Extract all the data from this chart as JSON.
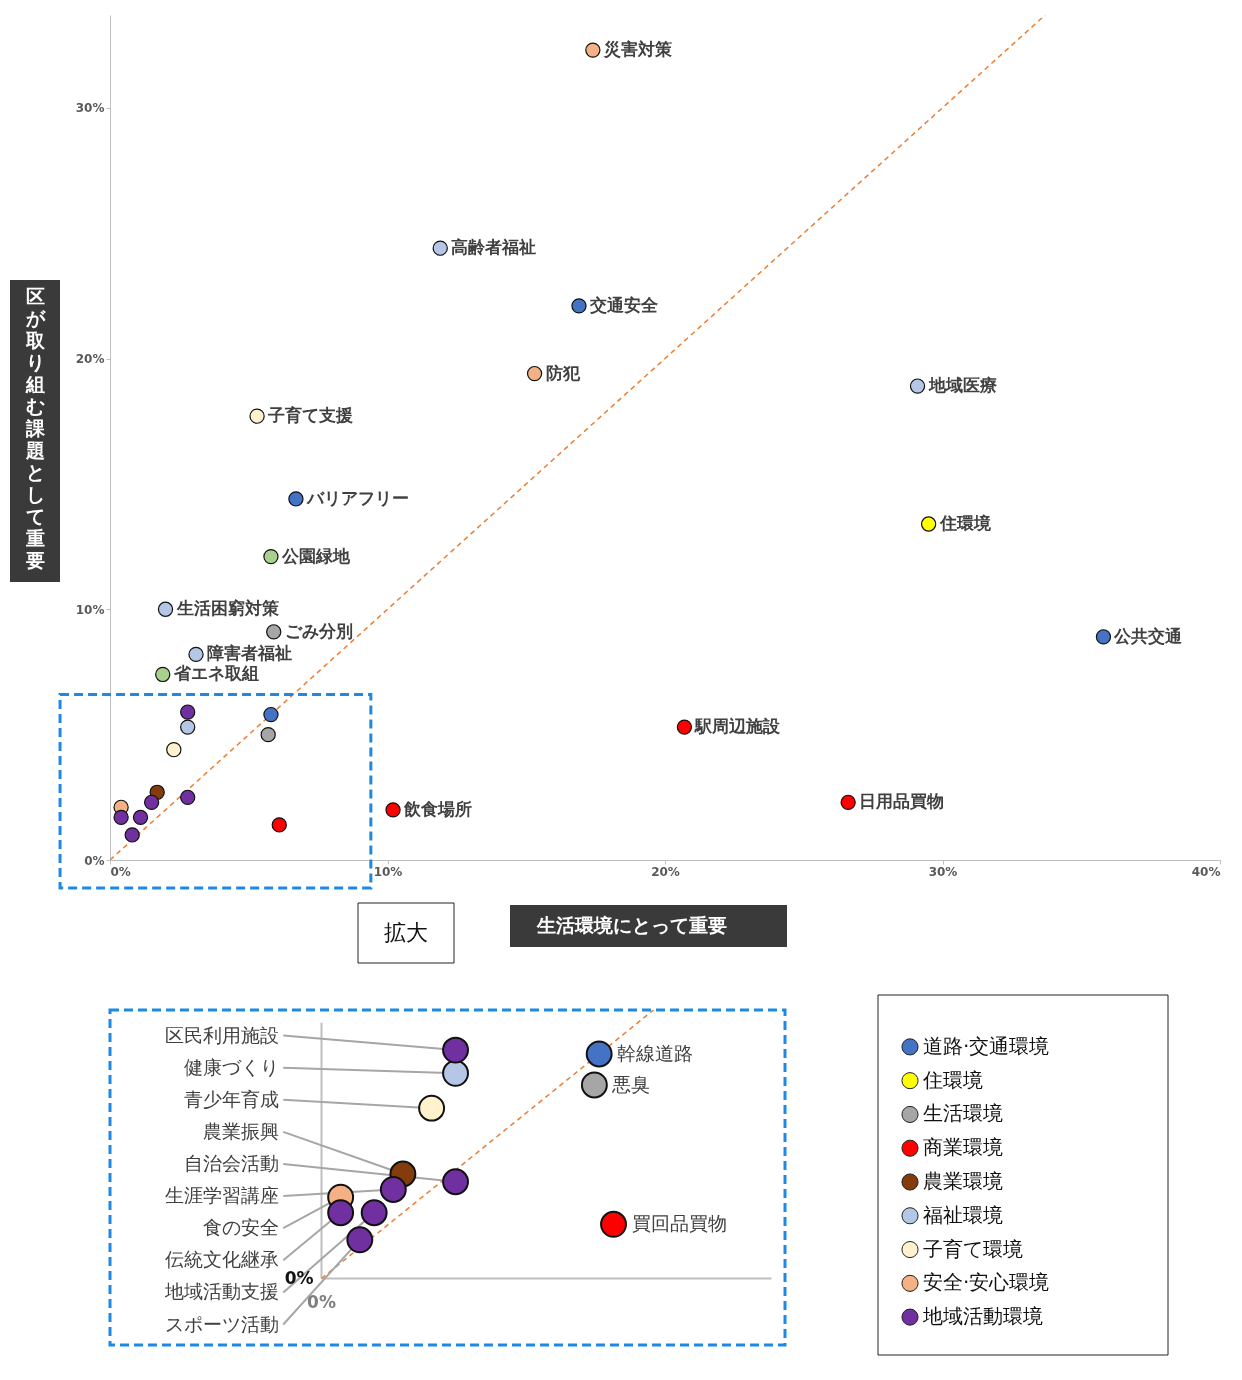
{
  "chart_data": {
    "type": "scatter",
    "xlabel": "生活環境にとって重要",
    "ylabel": "区が取り組む課題として重要",
    "annotations": [
      "拡大",
      "幹線道路",
      "悪臭",
      "買回品買物",
      "農業振興",
      "健康づくり",
      "青少年育成",
      "食の安全",
      "区民利用施設",
      "自治会活動",
      "生涯学習講座",
      "伝統文化継承",
      "地域活動支援",
      "スポーツ活動"
    ],
    "xlim": [
      0,
      40
    ],
    "ylim": [
      0,
      33.7
    ],
    "xticks": [
      {
        "value": 0,
        "label": "0%"
      },
      {
        "value": 10,
        "label": "10%"
      },
      {
        "value": 20,
        "label": "20%"
      },
      {
        "value": 30,
        "label": "30%"
      },
      {
        "value": 40,
        "label": "40%"
      }
    ],
    "yticks": [
      {
        "value": 0,
        "label": "0%"
      },
      {
        "value": 10,
        "label": "10%"
      },
      {
        "value": 20,
        "label": "20%"
      },
      {
        "value": 30,
        "label": "30%"
      }
    ],
    "grid": false,
    "legend": "bottom right",
    "marker": "circle",
    "series": [
      {
        "name": "道路·交通環境",
        "color": "#4472c4",
        "x": [
          16.9,
          6.7,
          35.8,
          5.8
        ],
        "values": [
          22.1,
          14.4,
          8.9,
          5.8
        ],
        "value_labels": [
          "交通安全",
          "バリアフリー",
          "公共交通",
          null
        ]
      },
      {
        "name": "住環境",
        "color": "#ffff00",
        "x": [
          29.5
        ],
        "values": [
          13.4
        ],
        "value_labels": [
          "住環境"
        ]
      },
      {
        "name": "生活環境",
        "color": "#a6a6a6",
        "x": [
          5.9,
          5.7
        ],
        "values": [
          9.1,
          5.0
        ],
        "value_labels": [
          "ごみ分別",
          null
        ]
      },
      {
        "name": "商業環境",
        "color": "#ff0000",
        "x": [
          20.7,
          26.6,
          10.2,
          6.1
        ],
        "values": [
          5.3,
          2.3,
          2.0,
          1.4
        ],
        "value_labels": [
          "駅周辺施設",
          "日用品買物",
          "飲食場所",
          null
        ]
      },
      {
        "name": "農業環境",
        "color": "#843c0c",
        "x": [
          1.7
        ],
        "values": [
          2.7
        ]
      },
      {
        "name": "福祉環境",
        "color": "#b4c7e7",
        "x": [
          11.9,
          29.1,
          2.0,
          3.1,
          2.8
        ],
        "values": [
          24.4,
          18.9,
          10.0,
          8.2,
          5.3
        ],
        "value_labels": [
          "高齢者福祉",
          "地域医療",
          "生活困窮対策",
          "障害者福祉",
          null
        ]
      },
      {
        "name": "子育て環境",
        "color": "#fff2cc",
        "x": [
          5.3,
          2.3
        ],
        "values": [
          17.7,
          4.4
        ],
        "value_labels": [
          "子育て支援",
          null
        ]
      },
      {
        "name": "安全·安心環境",
        "color": "#f4b183",
        "x": [
          17.4,
          15.3,
          0.4
        ],
        "values": [
          32.3,
          19.4,
          2.1
        ],
        "value_labels": [
          "災害対策",
          "防犯",
          null
        ]
      },
      {
        "name": "地域活動環境",
        "color": "#7030a0",
        "x": [
          2.8,
          2.8,
          1.5,
          0.4,
          1.1,
          0.8
        ],
        "values": [
          5.9,
          2.5,
          2.3,
          1.7,
          1.7,
          1.0
        ]
      },
      {
        "color": "#a9d18e",
        "x": [
          5.8,
          1.9
        ],
        "values": [
          12.1,
          7.4
        ],
        "value_labels": [
          "公園緑地",
          "省エネ取組"
        ]
      },
      {
        "type": "line",
        "color": "#ed7d31",
        "line_style": "dashed",
        "marker": "none",
        "x": [
          0,
          33.7
        ],
        "values": [
          0,
          33.7
        ]
      }
    ]
  }
}
